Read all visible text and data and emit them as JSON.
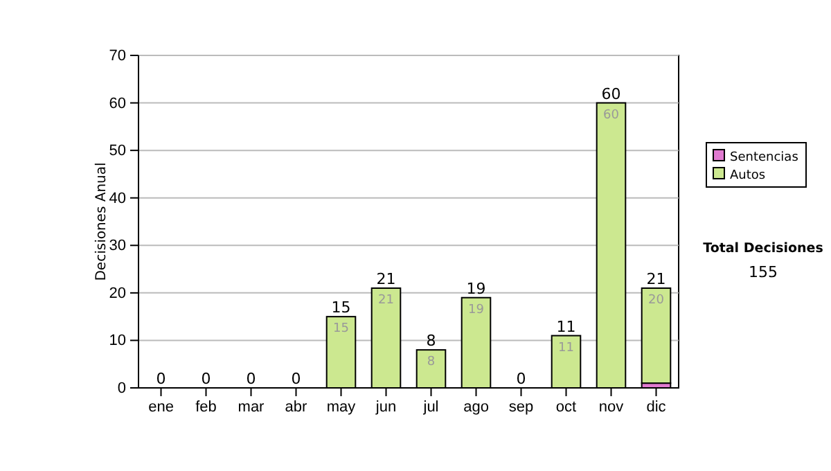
{
  "chart_data": {
    "type": "bar",
    "stacked": true,
    "ylabel": "Decisiones Anual",
    "categories": [
      "ene",
      "feb",
      "mar",
      "abr",
      "may",
      "jun",
      "jul",
      "ago",
      "sep",
      "oct",
      "nov",
      "dic"
    ],
    "series": [
      {
        "name": "Sentencias",
        "color": "#e07ad0",
        "values": [
          0,
          0,
          0,
          0,
          0,
          0,
          0,
          0,
          0,
          0,
          0,
          1
        ]
      },
      {
        "name": "Autos",
        "color": "#cce890",
        "values": [
          0,
          0,
          0,
          0,
          15,
          21,
          8,
          19,
          0,
          11,
          60,
          20
        ],
        "value_labels": [
          null,
          null,
          null,
          null,
          "15",
          "21",
          "8",
          "19",
          null,
          "11",
          "60",
          "20"
        ]
      }
    ],
    "totals": [
      "0",
      "0",
      "0",
      "0",
      "15",
      "21",
      "8",
      "19",
      "0",
      "11",
      "60",
      "21"
    ],
    "ylim": [
      0,
      70
    ],
    "yticks": [
      0,
      10,
      20,
      30,
      40,
      50,
      60,
      70
    ],
    "grid": "y",
    "legend": "right",
    "annotations": [
      "Total Decisiones",
      "155"
    ]
  }
}
